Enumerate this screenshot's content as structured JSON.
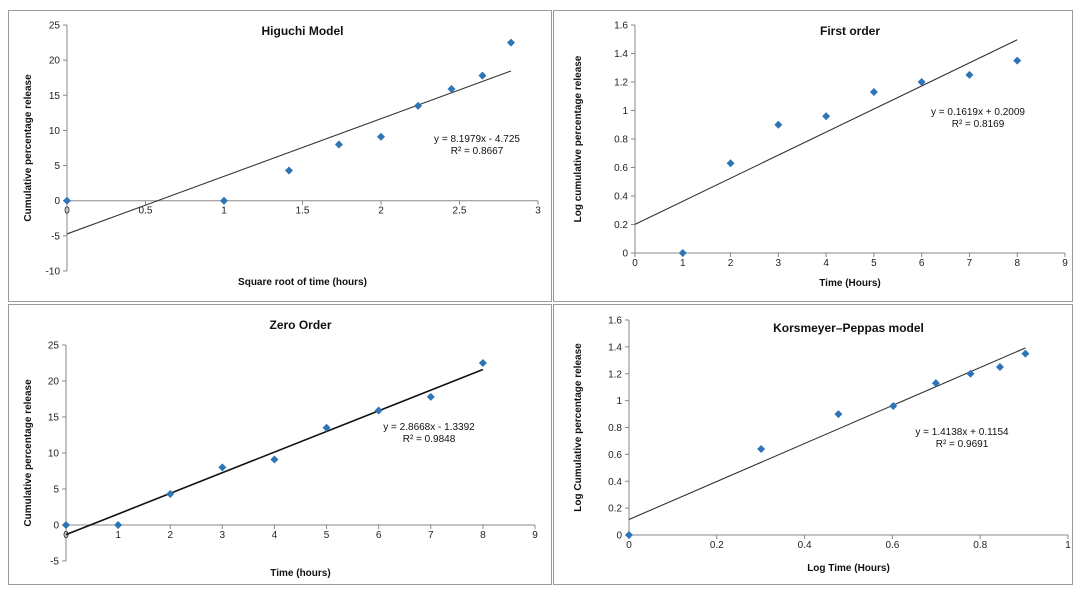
{
  "chart_data": [
    {
      "type": "scatter",
      "title": "Higuchi Model",
      "xlabel": "Square root of time (hours)",
      "ylabel": "Cumulative percentage release",
      "xlim": [
        0,
        3
      ],
      "ylim": [
        -10,
        25
      ],
      "xticks": [
        0,
        0.5,
        1,
        1.5,
        2,
        2.5,
        3
      ],
      "xtick_labels": [
        "0",
        "0.5",
        "1",
        "1.5",
        "2",
        "2.5",
        "3"
      ],
      "yticks": [
        -10,
        -5,
        0,
        5,
        10,
        15,
        20,
        25
      ],
      "ytick_labels": [
        "-10",
        "-5",
        "0",
        "5",
        "10",
        "15",
        "20",
        "25"
      ],
      "x_axis_at": 0,
      "points": {
        "x": [
          0,
          1,
          1.414,
          1.732,
          2,
          2.236,
          2.449,
          2.646,
          2.828
        ],
        "y": [
          0,
          0,
          4.3,
          8.0,
          9.1,
          13.5,
          15.9,
          17.8,
          22.5
        ]
      },
      "trendline": {
        "slope": 8.1979,
        "intercept": -4.725,
        "x_range": [
          0,
          2.828
        ]
      },
      "equation": "y = 8.1979x - 4.725",
      "r2": "R² = 0.8667",
      "marker_color": "#2e75b6",
      "line_color": "#333333"
    },
    {
      "type": "scatter",
      "title": "First order",
      "xlabel": "Time (Hours)",
      "ylabel": "Log cumulative percentage release",
      "xlim": [
        0,
        9
      ],
      "ylim": [
        0,
        1.6
      ],
      "xticks": [
        0,
        1,
        2,
        3,
        4,
        5,
        6,
        7,
        8,
        9
      ],
      "xtick_labels": [
        "0",
        "1",
        "2",
        "3",
        "4",
        "5",
        "6",
        "7",
        "8",
        "9"
      ],
      "yticks": [
        0,
        0.2,
        0.4,
        0.6,
        0.8,
        1,
        1.2,
        1.4,
        1.6
      ],
      "ytick_labels": [
        "0",
        "0.2",
        "0.4",
        "0.6",
        "0.8",
        "1",
        "1.2",
        "1.4",
        "1.6"
      ],
      "x_axis_at": 0,
      "points": {
        "x": [
          1,
          2,
          3,
          4,
          5,
          6,
          7,
          8
        ],
        "y": [
          0,
          0.63,
          0.9,
          0.96,
          1.13,
          1.2,
          1.25,
          1.35
        ]
      },
      "trendline": {
        "slope": 0.1619,
        "intercept": 0.2009,
        "x_range": [
          0,
          8
        ]
      },
      "equation": "y = 0.1619x + 0.2009",
      "r2": "R² = 0.8169",
      "marker_color": "#2e75b6",
      "line_color": "#333333"
    },
    {
      "type": "scatter",
      "title": "Zero Order",
      "xlabel": "Time (hours)",
      "ylabel": "Cumulative percentage release",
      "xlim": [
        0,
        9
      ],
      "ylim": [
        -5,
        25
      ],
      "xticks": [
        0,
        1,
        2,
        3,
        4,
        5,
        6,
        7,
        8,
        9
      ],
      "xtick_labels": [
        "0",
        "1",
        "2",
        "3",
        "4",
        "5",
        "6",
        "7",
        "8",
        "9"
      ],
      "yticks": [
        -5,
        0,
        5,
        10,
        15,
        20,
        25
      ],
      "ytick_labels": [
        "-5",
        "0",
        "5",
        "10",
        "15",
        "20",
        "25"
      ],
      "x_axis_at": 0,
      "points": {
        "x": [
          0,
          1,
          2,
          3,
          4,
          5,
          6,
          7,
          8
        ],
        "y": [
          0,
          0,
          4.3,
          8.0,
          9.1,
          13.5,
          15.9,
          17.8,
          22.5
        ]
      },
      "trendline": {
        "slope": 2.8668,
        "intercept": -1.3392,
        "x_range": [
          0,
          8
        ]
      },
      "equation": "y = 2.8668x - 1.3392",
      "r2": "R² = 0.9848",
      "marker_color": "#2e75b6",
      "line_color": "#111111"
    },
    {
      "type": "scatter",
      "title": "Korsmeyer–Peppas model",
      "xlabel": "Log Time (Hours)",
      "ylabel": "Log Cumulative percentage release",
      "xlim": [
        0,
        1
      ],
      "ylim": [
        0,
        1.6
      ],
      "xticks": [
        0,
        0.2,
        0.4,
        0.6,
        0.8,
        1
      ],
      "xtick_labels": [
        "0",
        "0.2",
        "0.4",
        "0.6",
        "0.8",
        "1"
      ],
      "yticks": [
        0,
        0.2,
        0.4,
        0.6,
        0.8,
        1,
        1.2,
        1.4,
        1.6
      ],
      "ytick_labels": [
        "0",
        "0.2",
        "0.4",
        "0.6",
        "0.8",
        "1",
        "1.2",
        "1.4",
        "1.6"
      ],
      "x_axis_at": 0,
      "points": {
        "x": [
          0,
          0.301,
          0.477,
          0.602,
          0.699,
          0.778,
          0.845,
          0.903
        ],
        "y": [
          0,
          0.64,
          0.9,
          0.96,
          1.13,
          1.2,
          1.25,
          1.35
        ]
      },
      "trendline": {
        "slope": 1.4138,
        "intercept": 0.1154,
        "x_range": [
          0,
          0.903
        ]
      },
      "equation": "y = 1.4138x + 0.1154",
      "r2": "R² = 0.9691",
      "marker_color": "#2e75b6",
      "line_color": "#333333"
    }
  ]
}
